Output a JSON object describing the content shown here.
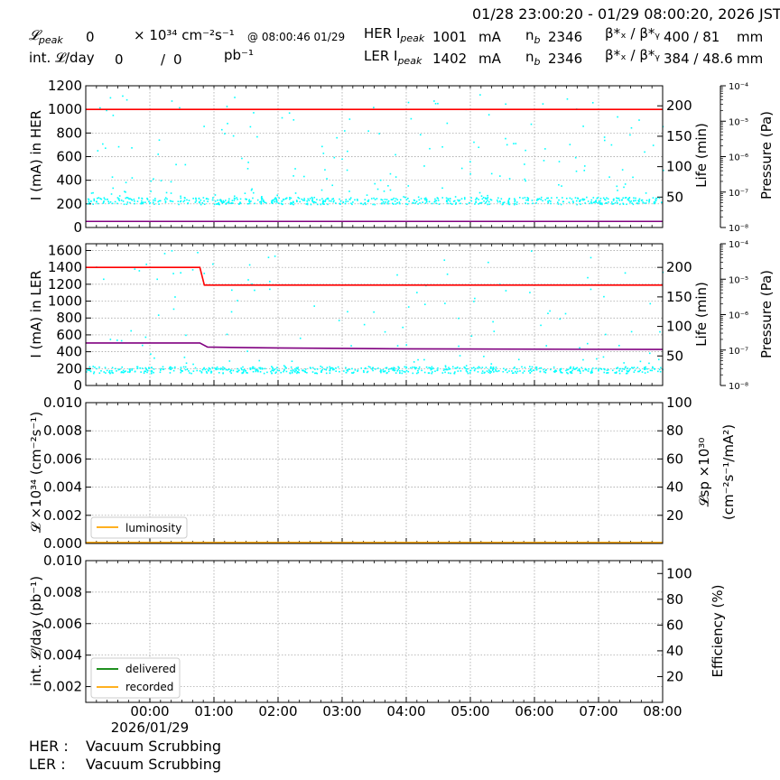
{
  "header": {
    "time_range": "01/28 23:00:20 - 01/29 08:00:20, 2026 JST",
    "lpeak_label": "𝓛",
    "lpeak_sub": "peak",
    "lpeak_value": "0",
    "lpeak_unit": "× 10³⁴ cm⁻²s⁻¹",
    "lpeak_time": "@ 08:00:46 01/29",
    "int_label": "int. 𝓛/day",
    "int_value1": "0",
    "int_sep": "/",
    "int_value2": "0",
    "int_unit": "pb⁻¹",
    "her_label": "HER I",
    "her_sub": "peak",
    "her_value": "1001",
    "her_unit": "mA",
    "ler_label": "LER I",
    "ler_sub": "peak",
    "ler_value": "1402",
    "ler_unit": "mA",
    "nb_label": "n",
    "nb_sub": "b",
    "her_nb": "2346",
    "ler_nb": "2346",
    "beta_label": "β*ₓ / β*ᵧ",
    "her_beta": "400  / 81",
    "ler_beta": "384  / 48.6",
    "beta_unit": "mm"
  },
  "footer": {
    "her_label": "HER :",
    "her_status": "Vacuum Scrubbing",
    "ler_label": "LER :",
    "ler_status": "Vacuum Scrubbing"
  },
  "colors": {
    "current": "#ff0000",
    "life": "#800080",
    "pressure": "#00ffff",
    "luminosity": "#ffa500",
    "delivered": "#008000",
    "recorded": "#ffa500"
  },
  "x_axis": {
    "tick_labels": [
      "00:00",
      "01:00",
      "02:00",
      "03:00",
      "04:00",
      "05:00",
      "06:00",
      "07:00",
      "08:00"
    ],
    "tick_hours": [
      1,
      2,
      3,
      4,
      5,
      6,
      7,
      8,
      9
    ],
    "range_hours": [
      0.0,
      9.0
    ],
    "date_label": "2026/01/29"
  },
  "chart_data": [
    {
      "type": "line",
      "name": "her-panel",
      "ylabel": "I (mA) in HER",
      "ylim": [
        0,
        1200
      ],
      "yticks": [
        0,
        200,
        400,
        600,
        800,
        1000,
        1200
      ],
      "y2label": "Life (min)",
      "y2lim": [
        0,
        233
      ],
      "y2ticks": [
        50,
        100,
        150,
        200
      ],
      "y3label": "Pressure (Pa)",
      "y3ticks": [
        "10⁻⁸",
        "10⁻⁷",
        "10⁻⁶",
        "10⁻⁵",
        "10⁻⁴"
      ],
      "grid": true,
      "current": {
        "x": [
          0.0,
          9.0
        ],
        "y": [
          1000,
          1000
        ]
      },
      "life": {
        "x": [
          0.0,
          9.0
        ],
        "y": [
          10,
          10
        ]
      },
      "pressure_band": {
        "low": 200,
        "high": 260,
        "density": 600,
        "outliers": 170,
        "outlier_max": 1130
      }
    },
    {
      "type": "line",
      "name": "ler-panel",
      "ylabel": "I (mA) in LER",
      "ylim": [
        0,
        1680
      ],
      "yticks": [
        0,
        200,
        400,
        600,
        800,
        1000,
        1200,
        1400,
        1600
      ],
      "y2label": "Life (min)",
      "y2lim": [
        0,
        240
      ],
      "y2ticks": [
        50,
        100,
        150,
        200
      ],
      "y3label": "Pressure (Pa)",
      "y3ticks": [
        "10⁻⁸",
        "10⁻⁷",
        "10⁻⁶",
        "10⁻⁵",
        "10⁻⁴"
      ],
      "grid": true,
      "current": {
        "x": [
          0.0,
          1.78,
          1.85,
          9.0
        ],
        "y": [
          1400,
          1400,
          1190,
          1190
        ]
      },
      "life": {
        "x": [
          0.0,
          1.78,
          1.9,
          3.0,
          5.0,
          9.0
        ],
        "y": [
          72,
          72,
          65,
          63.5,
          62,
          61
        ]
      },
      "pressure_band": {
        "low": 150,
        "high": 230,
        "density": 600,
        "outliers": 120,
        "outlier_max": 1620
      }
    },
    {
      "type": "line",
      "name": "luminosity-panel",
      "ylabel": "𝓛 ×10³⁴ (cm⁻²s⁻¹)",
      "ylim": [
        0,
        0.01
      ],
      "yticks": [
        0.0,
        0.002,
        0.004,
        0.006,
        0.008,
        0.01
      ],
      "ytick_labels": [
        "0.000",
        "0.002",
        "0.004",
        "0.006",
        "0.008",
        "0.010"
      ],
      "y2label_line1": "𝓛sp ×10³⁰",
      "y2label_line2": "(cm⁻²s⁻¹/mA²)",
      "y2lim": [
        0,
        100
      ],
      "y2ticks": [
        20,
        40,
        60,
        80,
        100
      ],
      "grid": true,
      "legend": "bottom-left",
      "series": [
        {
          "name": "luminosity",
          "x": [
            0,
            9
          ],
          "y": [
            0,
            0
          ]
        }
      ]
    },
    {
      "type": "line",
      "name": "integrated-panel",
      "ylabel": "int. 𝓛/day (pb⁻¹)",
      "ylim": [
        0.001,
        0.01
      ],
      "yticks": [
        0.002,
        0.004,
        0.006,
        0.008,
        0.01
      ],
      "ytick_labels": [
        "0.002",
        "0.004",
        "0.006",
        "0.008",
        "0.010"
      ],
      "y2label": "Efficiency (%)",
      "y2lim": [
        0,
        110
      ],
      "y2ticks": [
        20,
        40,
        60,
        80,
        100
      ],
      "grid": true,
      "legend": "bottom-left",
      "series": [
        {
          "name": "delivered",
          "x": [],
          "y": []
        },
        {
          "name": "recorded",
          "x": [],
          "y": []
        }
      ]
    }
  ]
}
